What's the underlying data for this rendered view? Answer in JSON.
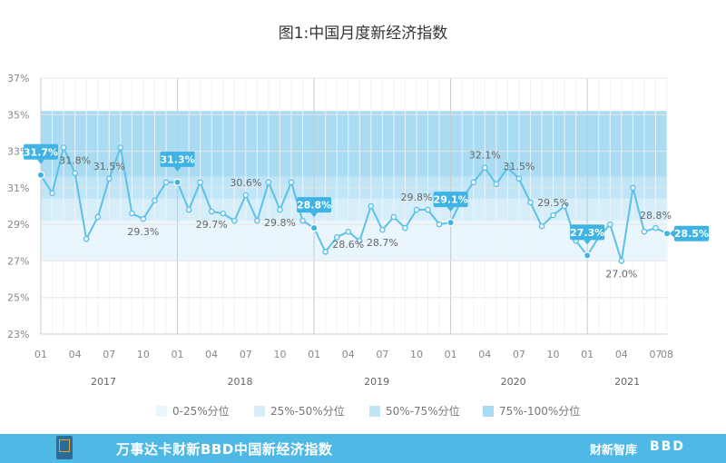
{
  "chart_data": {
    "type": "line",
    "title": "图1:中国月度新经济指数",
    "xlabel": "",
    "ylabel": "",
    "ylim": [
      23,
      37
    ],
    "y_ticks": [
      "23%",
      "25%",
      "27%",
      "29%",
      "31%",
      "33%",
      "35%",
      "37%"
    ],
    "x_month_ticks": [
      "01",
      "04",
      "07",
      "10",
      "01",
      "04",
      "07",
      "10",
      "01",
      "04",
      "07",
      "10",
      "01",
      "04",
      "07",
      "10",
      "01",
      "04",
      "07",
      "08"
    ],
    "years": [
      "2017",
      "2018",
      "2019",
      "2020",
      "2021"
    ],
    "percentile_bands": [
      {
        "label": "0-25%分位",
        "from": 27.0,
        "to": 29.2,
        "color": "#eaf6fd"
      },
      {
        "label": "25%-50%分位",
        "from": 29.2,
        "to": 30.4,
        "color": "#d6eefa"
      },
      {
        "label": "50%-75%分位",
        "from": 30.4,
        "to": 31.6,
        "color": "#c0e5f7"
      },
      {
        "label": "75%-100%分位",
        "from": 31.6,
        "to": 35.2,
        "color": "#a9dcf3"
      }
    ],
    "series": [
      {
        "values": [
          31.7,
          30.7,
          33.2,
          31.8,
          28.2,
          29.4,
          31.5,
          33.2,
          29.6,
          29.3,
          30.3,
          31.3,
          31.3,
          29.8,
          31.3,
          29.7,
          29.6,
          29.2,
          30.6,
          29.2,
          31.3,
          29.8,
          31.3,
          29.2,
          28.8,
          27.5,
          28.3,
          28.6,
          28.1,
          30.0,
          28.7,
          29.4,
          28.8,
          29.8,
          29.8,
          29.0,
          29.1,
          30.4,
          31.3,
          32.1,
          31.2,
          32.1,
          31.5,
          30.2,
          28.9,
          29.5,
          30.0,
          28.1,
          27.3,
          28.3,
          29.0,
          27.0,
          31.0,
          28.6,
          28.8,
          28.5
        ],
        "highlighted_points": [
          {
            "index": 0,
            "label": "31.7%"
          },
          {
            "index": 12,
            "label": "31.3%"
          },
          {
            "index": 24,
            "label": "28.8%"
          },
          {
            "index": 36,
            "label": "29.1%"
          },
          {
            "index": 48,
            "label": "27.3%"
          },
          {
            "index": 55,
            "label": "28.5%"
          }
        ],
        "plain_labels": [
          {
            "index": 3,
            "label": "31.8%"
          },
          {
            "index": 6,
            "label": "31.5%"
          },
          {
            "index": 9,
            "label": "29.3%"
          },
          {
            "index": 15,
            "label": "29.7%"
          },
          {
            "index": 18,
            "label": "30.6%"
          },
          {
            "index": 21,
            "label": "29.8%"
          },
          {
            "index": 27,
            "label": "28.6%"
          },
          {
            "index": 30,
            "label": "28.7%"
          },
          {
            "index": 33,
            "label": "29.8%"
          },
          {
            "index": 39,
            "label": "32.1%"
          },
          {
            "index": 42,
            "label": "31.5%"
          },
          {
            "index": 45,
            "label": "29.5%"
          },
          {
            "index": 51,
            "label": "27.0%"
          },
          {
            "index": 54,
            "label": "28.8%"
          }
        ]
      }
    ]
  },
  "legend": [
    {
      "label": "0-25%分位",
      "color": "#eaf6fd"
    },
    {
      "label": "25%-50%分位",
      "color": "#d6eefa"
    },
    {
      "label": "50%-75%分位",
      "color": "#c0e5f7"
    },
    {
      "label": "75%-100%分位",
      "color": "#a9dcf3"
    }
  ],
  "footer": {
    "text": "万事达卡财新BBD中国新经济指数",
    "brand_caixin": "财新智库",
    "brand_bbd": "BBD"
  },
  "colors": {
    "line": "#5cc0e8",
    "highlight": "#3fb3e3",
    "axis_text": "#888888",
    "footer_bg": "#4fb9e5"
  }
}
